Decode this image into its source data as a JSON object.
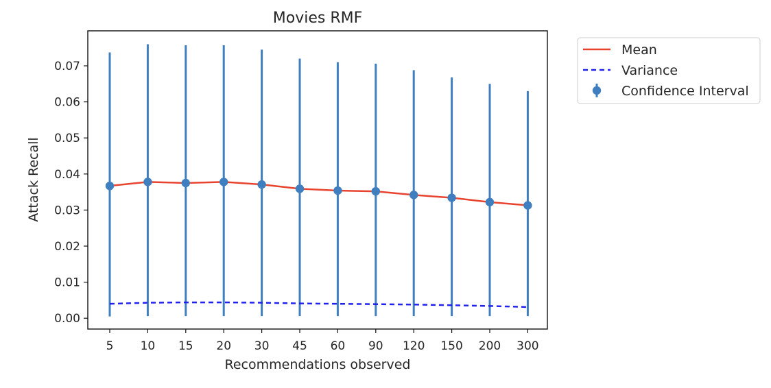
{
  "chart_data": {
    "type": "line",
    "title": "Movies RMF",
    "xlabel": "Recommendations observed",
    "ylabel": "Attack Recall",
    "categories": [
      "5",
      "10",
      "15",
      "20",
      "30",
      "45",
      "60",
      "90",
      "120",
      "150",
      "200",
      "300"
    ],
    "yticks": [
      "0.00",
      "0.01",
      "0.02",
      "0.03",
      "0.04",
      "0.05",
      "0.06",
      "0.07"
    ],
    "ylim": [
      -0.003,
      0.0797
    ],
    "grid": false,
    "legend_position": "outside-top-right",
    "series": [
      {
        "name": "Mean",
        "style": "solid",
        "color": "#e8432f",
        "values": [
          0.0367,
          0.0378,
          0.0375,
          0.0378,
          0.0371,
          0.0359,
          0.0354,
          0.0352,
          0.0342,
          0.0334,
          0.0322,
          0.0313
        ]
      },
      {
        "name": "Variance",
        "style": "dashed",
        "color": "#2222ee",
        "values": [
          0.004,
          0.0043,
          0.0044,
          0.0044,
          0.0043,
          0.0041,
          0.004,
          0.0039,
          0.0038,
          0.0036,
          0.0034,
          0.0031
        ]
      },
      {
        "name": "Confidence Interval",
        "style": "errorbar",
        "color": "#3f7fbf",
        "values": [
          0.0367,
          0.0378,
          0.0375,
          0.0378,
          0.0371,
          0.0359,
          0.0354,
          0.0352,
          0.0342,
          0.0334,
          0.0322,
          0.0313
        ],
        "lower": [
          0.0005,
          0.0006,
          0.0006,
          0.0006,
          0.0006,
          0.0006,
          0.0006,
          0.0006,
          0.0006,
          0.0006,
          0.0006,
          0.0006
        ],
        "upper": [
          0.0737,
          0.076,
          0.0757,
          0.0757,
          0.0745,
          0.072,
          0.071,
          0.0706,
          0.0688,
          0.0668,
          0.065,
          0.063
        ]
      }
    ]
  }
}
